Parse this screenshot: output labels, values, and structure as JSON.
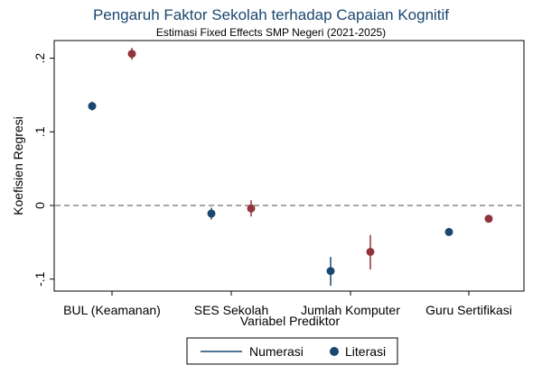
{
  "chart_data": {
    "type": "scatter",
    "title": "Pengaruh Faktor Sekolah terhadap Capaian Kognitif",
    "subtitle": "Estimasi Fixed Effects SMP Negeri (2021-2025)",
    "xlabel": "Variabel Prediktor",
    "ylabel": "Koefisien Regresi",
    "categories": [
      "BUL (Keamanan)",
      "SES Sekolah",
      "Jumlah Komputer",
      "Guru Sertifikasi"
    ],
    "yticks": [
      ".2",
      ".1",
      "0",
      "-.1"
    ],
    "ytick_values": [
      0.2,
      0.1,
      0,
      -0.1
    ],
    "ylim": [
      -0.12,
      0.225
    ],
    "reference_line": 0,
    "series": [
      {
        "name": "Numerasi",
        "color": "#1a476f",
        "values": [
          0.135,
          -0.011,
          -0.089,
          -0.036
        ],
        "ci_low": [
          0.129,
          -0.019,
          -0.109,
          -0.039
        ],
        "ci_high": [
          0.141,
          -0.003,
          -0.07,
          -0.033
        ]
      },
      {
        "name": "Literasi",
        "color": "#90353b",
        "values": [
          0.206,
          -0.004,
          -0.063,
          -0.018
        ],
        "ci_low": [
          0.198,
          -0.015,
          -0.087,
          -0.02
        ],
        "ci_high": [
          0.214,
          0.007,
          -0.04,
          -0.016
        ]
      }
    ],
    "legend": {
      "position": "bottom",
      "items": [
        {
          "label": "Numerasi",
          "marker": "line",
          "color": "#1a476f"
        },
        {
          "label": "Literasi",
          "marker": "dot",
          "color": "#1a476f"
        }
      ]
    },
    "grid": false
  }
}
